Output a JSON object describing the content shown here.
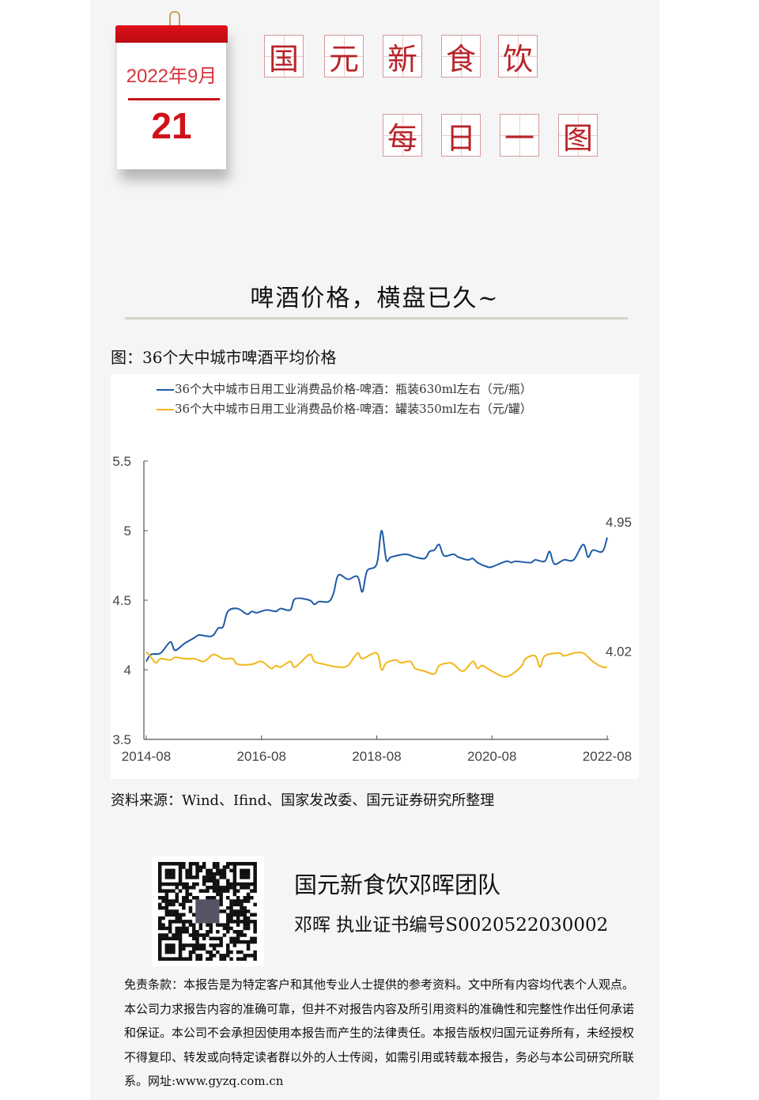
{
  "calendar": {
    "year_month": "2022年9月",
    "day": "21"
  },
  "brand_tiles": [
    "国",
    "元",
    "新",
    "食",
    "饮"
  ],
  "series_tiles": [
    "每",
    "日",
    "一",
    "图"
  ],
  "headline": "啤酒价格，横盘已久~",
  "figure_title": "图：36个大中城市啤酒平均价格",
  "source": "资料来源：Wind、Ifind、国家发改委、国元证券研究所整理",
  "team": {
    "name": "国元新食饮邓晖团队",
    "cert": "邓晖  执业证书编号S0020522030002"
  },
  "disclaimer": "免责条款：本报告是为特定客户和其他专业人士提供的参考资料。文中所有内容均代表个人观点。本公司力求报告内容的准确可靠，但并不对报告内容及所引用资料的准确性和完整性作出任何承诺和保证。本公司不会承担因使用本报告而产生的法律责任。本报告版权归国元证券所有，未经授权不得复印、转发或向特定读者群以外的人士传阅，如需引用或转载本报告，务必与本公司研究所联系。网址:www.gyzq.com.cn",
  "colors": {
    "accent": "#c8141c",
    "blue": "#1f5aa6",
    "yellow": "#f2b61c"
  },
  "chart_data": {
    "type": "line",
    "title": "",
    "xlabel": "",
    "ylabel": "",
    "ylim": [
      3.5,
      5.5
    ],
    "yticks": [
      "3.5",
      "4",
      "4.5",
      "5",
      "5.5"
    ],
    "xticks": [
      "2014-08",
      "2016-08",
      "2018-08",
      "2020-08",
      "2022-08"
    ],
    "legend_position": "top",
    "grid": false,
    "series": [
      {
        "name": "36个大中城市日用工业消费品价格-啤酒：瓶装630ml左右（元/瓶）",
        "color": "#1f5aa6",
        "end_label": "4.95",
        "points": [
          [
            "2014-08",
            4.06
          ],
          [
            "2014-09",
            4.11
          ],
          [
            "2014-11",
            4.12
          ],
          [
            "2015-01",
            4.2
          ],
          [
            "2015-02",
            4.14
          ],
          [
            "2015-04",
            4.19
          ],
          [
            "2015-06",
            4.23
          ],
          [
            "2015-07",
            4.25
          ],
          [
            "2015-09",
            4.24
          ],
          [
            "2015-10",
            4.25
          ],
          [
            "2015-11",
            4.3
          ],
          [
            "2015-12",
            4.31
          ],
          [
            "2016-01",
            4.42
          ],
          [
            "2016-03",
            4.44
          ],
          [
            "2016-05",
            4.4
          ],
          [
            "2016-06",
            4.42
          ],
          [
            "2016-07",
            4.41
          ],
          [
            "2016-09",
            4.43
          ],
          [
            "2016-11",
            4.42
          ],
          [
            "2016-12",
            4.44
          ],
          [
            "2017-02",
            4.43
          ],
          [
            "2017-03",
            4.51
          ],
          [
            "2017-06",
            4.5
          ],
          [
            "2017-07",
            4.47
          ],
          [
            "2017-08",
            4.49
          ],
          [
            "2017-10",
            4.49
          ],
          [
            "2017-11",
            4.55
          ],
          [
            "2017-12",
            4.68
          ],
          [
            "2018-02",
            4.65
          ],
          [
            "2018-04",
            4.67
          ],
          [
            "2018-05",
            4.56
          ],
          [
            "2018-06",
            4.71
          ],
          [
            "2018-08",
            4.76
          ],
          [
            "2018-09",
            5.0
          ],
          [
            "2018-10",
            4.79
          ],
          [
            "2018-11",
            4.81
          ],
          [
            "2019-02",
            4.83
          ],
          [
            "2019-04",
            4.81
          ],
          [
            "2019-06",
            4.8
          ],
          [
            "2019-07",
            4.85
          ],
          [
            "2019-08",
            4.86
          ],
          [
            "2019-09",
            4.9
          ],
          [
            "2019-10",
            4.82
          ],
          [
            "2019-12",
            4.83
          ],
          [
            "2020-01",
            4.81
          ],
          [
            "2020-03",
            4.79
          ],
          [
            "2020-04",
            4.8
          ],
          [
            "2020-05",
            4.77
          ],
          [
            "2020-07",
            4.74
          ],
          [
            "2020-08",
            4.74
          ],
          [
            "2020-11",
            4.78
          ],
          [
            "2020-12",
            4.77
          ],
          [
            "2021-01",
            4.78
          ],
          [
            "2021-04",
            4.77
          ],
          [
            "2021-05",
            4.79
          ],
          [
            "2021-07",
            4.78
          ],
          [
            "2021-08",
            4.85
          ],
          [
            "2021-09",
            4.76
          ],
          [
            "2021-11",
            4.79
          ],
          [
            "2022-01",
            4.79
          ],
          [
            "2022-03",
            4.9
          ],
          [
            "2022-04",
            4.81
          ],
          [
            "2022-05",
            4.86
          ],
          [
            "2022-07",
            4.85
          ],
          [
            "2022-08",
            4.95
          ]
        ]
      },
      {
        "name": "36个大中城市日用工业消费品价格-啤酒：罐装350ml左右（元/罐）",
        "color": "#f2b61c",
        "end_label": "4.02",
        "points": [
          [
            "2014-08",
            4.13
          ],
          [
            "2014-09",
            4.09
          ],
          [
            "2014-10",
            4.05
          ],
          [
            "2014-11",
            4.08
          ],
          [
            "2015-01",
            4.07
          ],
          [
            "2015-02",
            4.09
          ],
          [
            "2015-04",
            4.08
          ],
          [
            "2015-06",
            4.08
          ],
          [
            "2015-08",
            4.06
          ],
          [
            "2015-10",
            4.11
          ],
          [
            "2015-12",
            4.08
          ],
          [
            "2016-02",
            4.08
          ],
          [
            "2016-03",
            4.04
          ],
          [
            "2016-06",
            4.04
          ],
          [
            "2016-08",
            4.06
          ],
          [
            "2016-10",
            4.01
          ],
          [
            "2016-11",
            4.03
          ],
          [
            "2016-12",
            4.02
          ],
          [
            "2017-02",
            4.06
          ],
          [
            "2017-03",
            4.02
          ],
          [
            "2017-06",
            4.11
          ],
          [
            "2017-07",
            4.06
          ],
          [
            "2017-09",
            4.04
          ],
          [
            "2017-12",
            4.02
          ],
          [
            "2018-02",
            4.03
          ],
          [
            "2018-04",
            4.12
          ],
          [
            "2018-05",
            4.08
          ],
          [
            "2018-08",
            4.12
          ],
          [
            "2018-09",
            4.0
          ],
          [
            "2018-10",
            4.05
          ],
          [
            "2018-12",
            4.07
          ],
          [
            "2019-01",
            4.05
          ],
          [
            "2019-03",
            4.06
          ],
          [
            "2019-04",
            4.01
          ],
          [
            "2019-06",
            3.99
          ],
          [
            "2019-08",
            3.97
          ],
          [
            "2019-09",
            4.03
          ],
          [
            "2019-11",
            4.05
          ],
          [
            "2019-12",
            4.04
          ],
          [
            "2020-02",
            3.99
          ],
          [
            "2020-04",
            4.06
          ],
          [
            "2020-05",
            4.01
          ],
          [
            "2020-06",
            4.03
          ],
          [
            "2020-08",
            3.99
          ],
          [
            "2020-11",
            3.95
          ],
          [
            "2021-02",
            4.02
          ],
          [
            "2021-03",
            4.08
          ],
          [
            "2021-05",
            4.1
          ],
          [
            "2021-06",
            4.02
          ],
          [
            "2021-07",
            4.1
          ],
          [
            "2021-10",
            4.12
          ],
          [
            "2021-11",
            4.1
          ],
          [
            "2022-01",
            4.12
          ],
          [
            "2022-03",
            4.12
          ],
          [
            "2022-05",
            4.06
          ],
          [
            "2022-07",
            4.02
          ],
          [
            "2022-08",
            4.02
          ]
        ]
      }
    ]
  }
}
